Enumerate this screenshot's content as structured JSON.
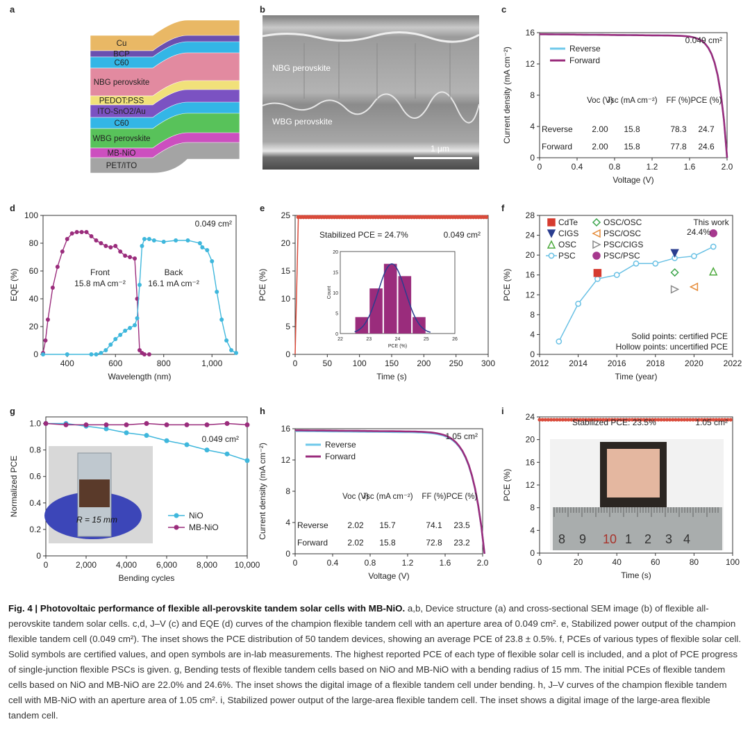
{
  "panel_labels": {
    "a": "a",
    "b": "b",
    "c": "c",
    "d": "d",
    "e": "e",
    "f": "f",
    "g": "g",
    "h": "h",
    "i": "i"
  },
  "panel_a": {
    "layers": [
      "Cu",
      "BCP",
      "C60",
      "NBG perovskite",
      "PEDOT:PSS",
      "ITO-SnO2/Au",
      "C60",
      "WBG perovskite",
      "MB-NiO",
      "PET/ITO"
    ],
    "colors": [
      "#e9b865",
      "#6a4fb0",
      "#33b6e6",
      "#e28aa0",
      "#f1e17a",
      "#7b52c2",
      "#33b6e6",
      "#58c25a",
      "#cc4fbf",
      "#a4a4a4"
    ]
  },
  "panel_b": {
    "top_label": "NBG perovskite",
    "bottom_label": "WBG perovskite",
    "scale_label": "1 μm"
  },
  "chart_data": [
    {
      "id": "c",
      "type": "line",
      "area_label": "0.049 cm²",
      "xlabel": "Voltage (V)",
      "ylabel": "Current density (mA cm⁻²)",
      "xlim": [
        0,
        2.0
      ],
      "ylim": [
        0,
        16
      ],
      "xticks": [
        "0",
        "0.4",
        "0.8",
        "1.2",
        "1.6",
        "2.0"
      ],
      "yticks": [
        "0",
        "4",
        "8",
        "12",
        "16"
      ],
      "series": [
        {
          "name": "Reverse",
          "color": "#6ec8ea",
          "voc": 2.0,
          "jsc": 15.8,
          "ff": 78.3
        },
        {
          "name": "Forward",
          "color": "#9a2c7c",
          "voc": 2.0,
          "jsc": 15.8,
          "ff": 77.8
        }
      ],
      "table": {
        "headers": [
          "Voc (V)",
          "Jsc (mA cm⁻²)",
          "FF (%)",
          "PCE (%)"
        ],
        "rows": [
          [
            "Reverse",
            "2.00",
            "15.8",
            "78.3",
            "24.7"
          ],
          [
            "Forward",
            "2.00",
            "15.8",
            "77.8",
            "24.6"
          ]
        ]
      }
    },
    {
      "id": "d",
      "type": "line",
      "area_label": "0.049 cm²",
      "xlabel": "Wavelength (nm)",
      "ylabel": "EQE (%)",
      "xlim": [
        300,
        1100
      ],
      "ylim": [
        0,
        100
      ],
      "xticks": [
        "400",
        "600",
        "800",
        "1,000"
      ],
      "yticks": [
        "0",
        "20",
        "40",
        "60",
        "80",
        "100"
      ],
      "series": [
        {
          "name": "Front",
          "note": "15.8 mA cm⁻²",
          "color": "#9a2c7c",
          "x": [
            300,
            310,
            320,
            340,
            360,
            380,
            400,
            420,
            440,
            460,
            480,
            500,
            520,
            540,
            560,
            580,
            600,
            620,
            640,
            660,
            680,
            690,
            700,
            710,
            720,
            740
          ],
          "y": [
            1,
            10,
            25,
            48,
            63,
            74,
            83,
            87,
            88,
            88,
            88,
            85,
            82,
            80,
            78,
            77,
            78,
            74,
            71,
            70,
            69,
            40,
            3,
            1,
            0,
            0
          ]
        },
        {
          "name": "Back",
          "note": "16.1 mA cm⁻²",
          "color": "#3fb7dc",
          "x": [
            300,
            400,
            500,
            520,
            540,
            560,
            580,
            600,
            620,
            640,
            660,
            680,
            690,
            700,
            710,
            720,
            740,
            760,
            800,
            850,
            900,
            950,
            960,
            980,
            1000,
            1020,
            1040,
            1060,
            1080,
            1100
          ],
          "y": [
            0,
            0,
            0,
            0,
            1,
            3,
            7,
            11,
            14,
            17,
            19,
            21,
            26,
            50,
            78,
            83,
            83,
            82,
            81,
            82,
            82,
            80,
            77,
            75,
            67,
            45,
            25,
            10,
            3,
            1
          ]
        }
      ]
    },
    {
      "id": "e",
      "type": "line",
      "area_label": "0.049 cm²",
      "stabilized_label": "Stabilized PCE = 24.7%",
      "xlabel": "Time (s)",
      "ylabel": "PCE (%)",
      "xlim": [
        0,
        300
      ],
      "ylim": [
        0,
        25
      ],
      "xticks": [
        "0",
        "50",
        "100",
        "150",
        "200",
        "250",
        "300"
      ],
      "yticks": [
        "0",
        "5",
        "10",
        "15",
        "20",
        "25"
      ],
      "series": [
        {
          "name": "PCE",
          "color": "#d94a3a",
          "plateau": 24.7,
          "x_start": 5,
          "x_end": 300
        }
      ],
      "inset": {
        "type": "bar",
        "xlabel": "PCE (%)",
        "ylabel": "Count",
        "xlim": [
          22,
          26
        ],
        "ylim": [
          0,
          20
        ],
        "xticks": [
          "22",
          "23",
          "24",
          "25",
          "26"
        ],
        "yticks": [
          "0",
          "5",
          "10",
          "15",
          "20"
        ],
        "bins": [
          22.75,
          23.25,
          23.75,
          24.25,
          24.75
        ],
        "counts": [
          4,
          11,
          17,
          14,
          4
        ],
        "fit_mean": 23.8,
        "fit_sd": 0.5
      }
    },
    {
      "id": "f",
      "type": "scatter",
      "xlabel": "Time (year)",
      "ylabel": "PCE (%)",
      "xlim": [
        2012,
        2022
      ],
      "ylim": [
        0,
        28
      ],
      "xticks": [
        "2012",
        "2014",
        "2016",
        "2018",
        "2020",
        "2022"
      ],
      "yticks": [
        "0",
        "4",
        "8",
        "12",
        "16",
        "20",
        "24",
        "28"
      ],
      "psc_line": {
        "name": "PSC",
        "color": "#68c0e4",
        "x": [
          2013,
          2014,
          2015,
          2016,
          2017,
          2018,
          2019,
          2020,
          2021
        ],
        "y": [
          2.6,
          10.2,
          15.2,
          16.0,
          18.3,
          18.3,
          19.4,
          19.8,
          21.7
        ]
      },
      "points": [
        {
          "name": "CdTe",
          "x": 2015,
          "y": 16.4,
          "marker": "square",
          "filled": true,
          "color": "#d63b2f"
        },
        {
          "name": "CIGS",
          "x": 2019,
          "y": 20.4,
          "marker": "triangle-down",
          "filled": true,
          "color": "#2a3d8f"
        },
        {
          "name": "OSC",
          "x": 2021,
          "y": 16.7,
          "marker": "triangle-up",
          "filled": false,
          "color": "#4daa3d"
        },
        {
          "name": "OSC/OSC",
          "x": 2019,
          "y": 16.5,
          "marker": "diamond",
          "filled": false,
          "color": "#3aa44a"
        },
        {
          "name": "PSC/OSC",
          "x": 2020,
          "y": 13.6,
          "marker": "triangle-left",
          "filled": false,
          "color": "#e58c3a"
        },
        {
          "name": "PSC/CIGS",
          "x": 2019,
          "y": 13.1,
          "marker": "triangle-right",
          "filled": false,
          "color": "#8a8a8a"
        },
        {
          "name": "PSC/PSC",
          "x": 2021,
          "y": 24.4,
          "marker": "circle",
          "filled": true,
          "color": "#a6388e"
        }
      ],
      "annotation": "This work",
      "annotation_value": "24.4%",
      "footnotes": [
        "Solid points: certified PCE",
        "Hollow points: uncertified PCE"
      ]
    },
    {
      "id": "g",
      "type": "line",
      "area_label": "0.049 cm²",
      "xlabel": "Bending cycles",
      "ylabel": "Normalized PCE",
      "xlim": [
        0,
        10000
      ],
      "ylim": [
        0,
        1.05
      ],
      "xticks": [
        "0",
        "2,000",
        "4,000",
        "6,000",
        "8,000",
        "10,000"
      ],
      "yticks": [
        "0",
        "0.2",
        "0.4",
        "0.6",
        "0.8",
        "1.0"
      ],
      "series": [
        {
          "name": "NiO",
          "color": "#3fb7dc",
          "x": [
            0,
            1000,
            2000,
            3000,
            4000,
            5000,
            6000,
            7000,
            8000,
            9000,
            10000
          ],
          "y": [
            1.0,
            1.0,
            0.98,
            0.96,
            0.93,
            0.91,
            0.87,
            0.84,
            0.8,
            0.77,
            0.72
          ]
        },
        {
          "name": "MB-NiO",
          "color": "#9a2c7c",
          "x": [
            0,
            1000,
            2000,
            3000,
            4000,
            5000,
            6000,
            7000,
            8000,
            9000,
            10000
          ],
          "y": [
            1.0,
            0.99,
            0.99,
            0.99,
            0.99,
            1.0,
            0.99,
            0.99,
            0.99,
            1.0,
            0.99
          ]
        }
      ],
      "inset_label": "R = 15 mm"
    },
    {
      "id": "h",
      "type": "line",
      "area_label": "1.05 cm²",
      "xlabel": "Voltage (V)",
      "ylabel": "Current density (mA cm⁻²)",
      "xlim": [
        0,
        2.0
      ],
      "ylim": [
        0,
        16
      ],
      "xticks": [
        "0",
        "0.4",
        "0.8",
        "1.2",
        "1.6",
        "2.0"
      ],
      "yticks": [
        "0",
        "4",
        "8",
        "12",
        "16"
      ],
      "series": [
        {
          "name": "Reverse",
          "color": "#6ec8ea",
          "voc": 2.02,
          "jsc": 15.7,
          "ff": 74.1
        },
        {
          "name": "Forward",
          "color": "#9a2c7c",
          "voc": 2.02,
          "jsc": 15.8,
          "ff": 72.8
        }
      ],
      "table": {
        "headers": [
          "Voc (V)",
          "Jsc (mA cm⁻²)",
          "FF (%)",
          "PCE (%)"
        ],
        "rows": [
          [
            "Reverse",
            "2.02",
            "15.7",
            "74.1",
            "23.5"
          ],
          [
            "Forward",
            "2.02",
            "15.8",
            "72.8",
            "23.2"
          ]
        ]
      }
    },
    {
      "id": "i",
      "type": "line",
      "area_label": "1.05 cm²",
      "stabilized_label": "Stabilized PCE: 23.5%",
      "xlabel": "Time (s)",
      "ylabel": "PCE (%)",
      "xlim": [
        0,
        100
      ],
      "ylim": [
        0,
        24
      ],
      "xticks": [
        "0",
        "20",
        "40",
        "60",
        "80",
        "100"
      ],
      "yticks": [
        "0",
        "4",
        "8",
        "12",
        "16",
        "20",
        "24"
      ],
      "series": [
        {
          "name": "PCE",
          "color": "#d94a3a",
          "plateau": 23.5
        }
      ],
      "ruler_numbers": [
        "8",
        "9",
        "10",
        "1",
        "2",
        "3",
        "4"
      ]
    }
  ],
  "caption": {
    "title": "Fig. 4 | Photovoltaic performance of flexible all-perovskite tandem solar cells with MB-NiO.",
    "text": " a,b, Device structure (a) and cross-sectional SEM image (b) of flexible all-perovskite tandem solar cells. c,d, J–V (c) and EQE (d) curves of the champion flexible tandem cell with an aperture area of 0.049 cm². e, Stabilized power output of the champion flexible tandem cell (0.049 cm²). The inset shows the PCE distribution of 50 tandem devices, showing an average PCE of 23.8 ± 0.5%. f, PCEs of various types of flexible solar cell. Solid symbols are certified values, and open symbols are in-lab measurements. The highest reported PCE of each type of flexible solar cell is included, and a plot of PCE progress of single-junction flexible PSCs is given. g, Bending tests of flexible tandem cells based on NiO and MB-NiO with a bending radius of 15 mm. The initial PCEs of flexible tandem cells based on NiO and MB-NiO are 22.0% and 24.6%. The inset shows the digital image of a flexible tandem cell under bending. h, J–V curves of the champion flexible tandem cell with MB-NiO with an aperture area of 1.05 cm². i, Stabilized power output of the large-area flexible tandem cell. The inset shows a digital image of the large-area flexible tandem cell."
  }
}
